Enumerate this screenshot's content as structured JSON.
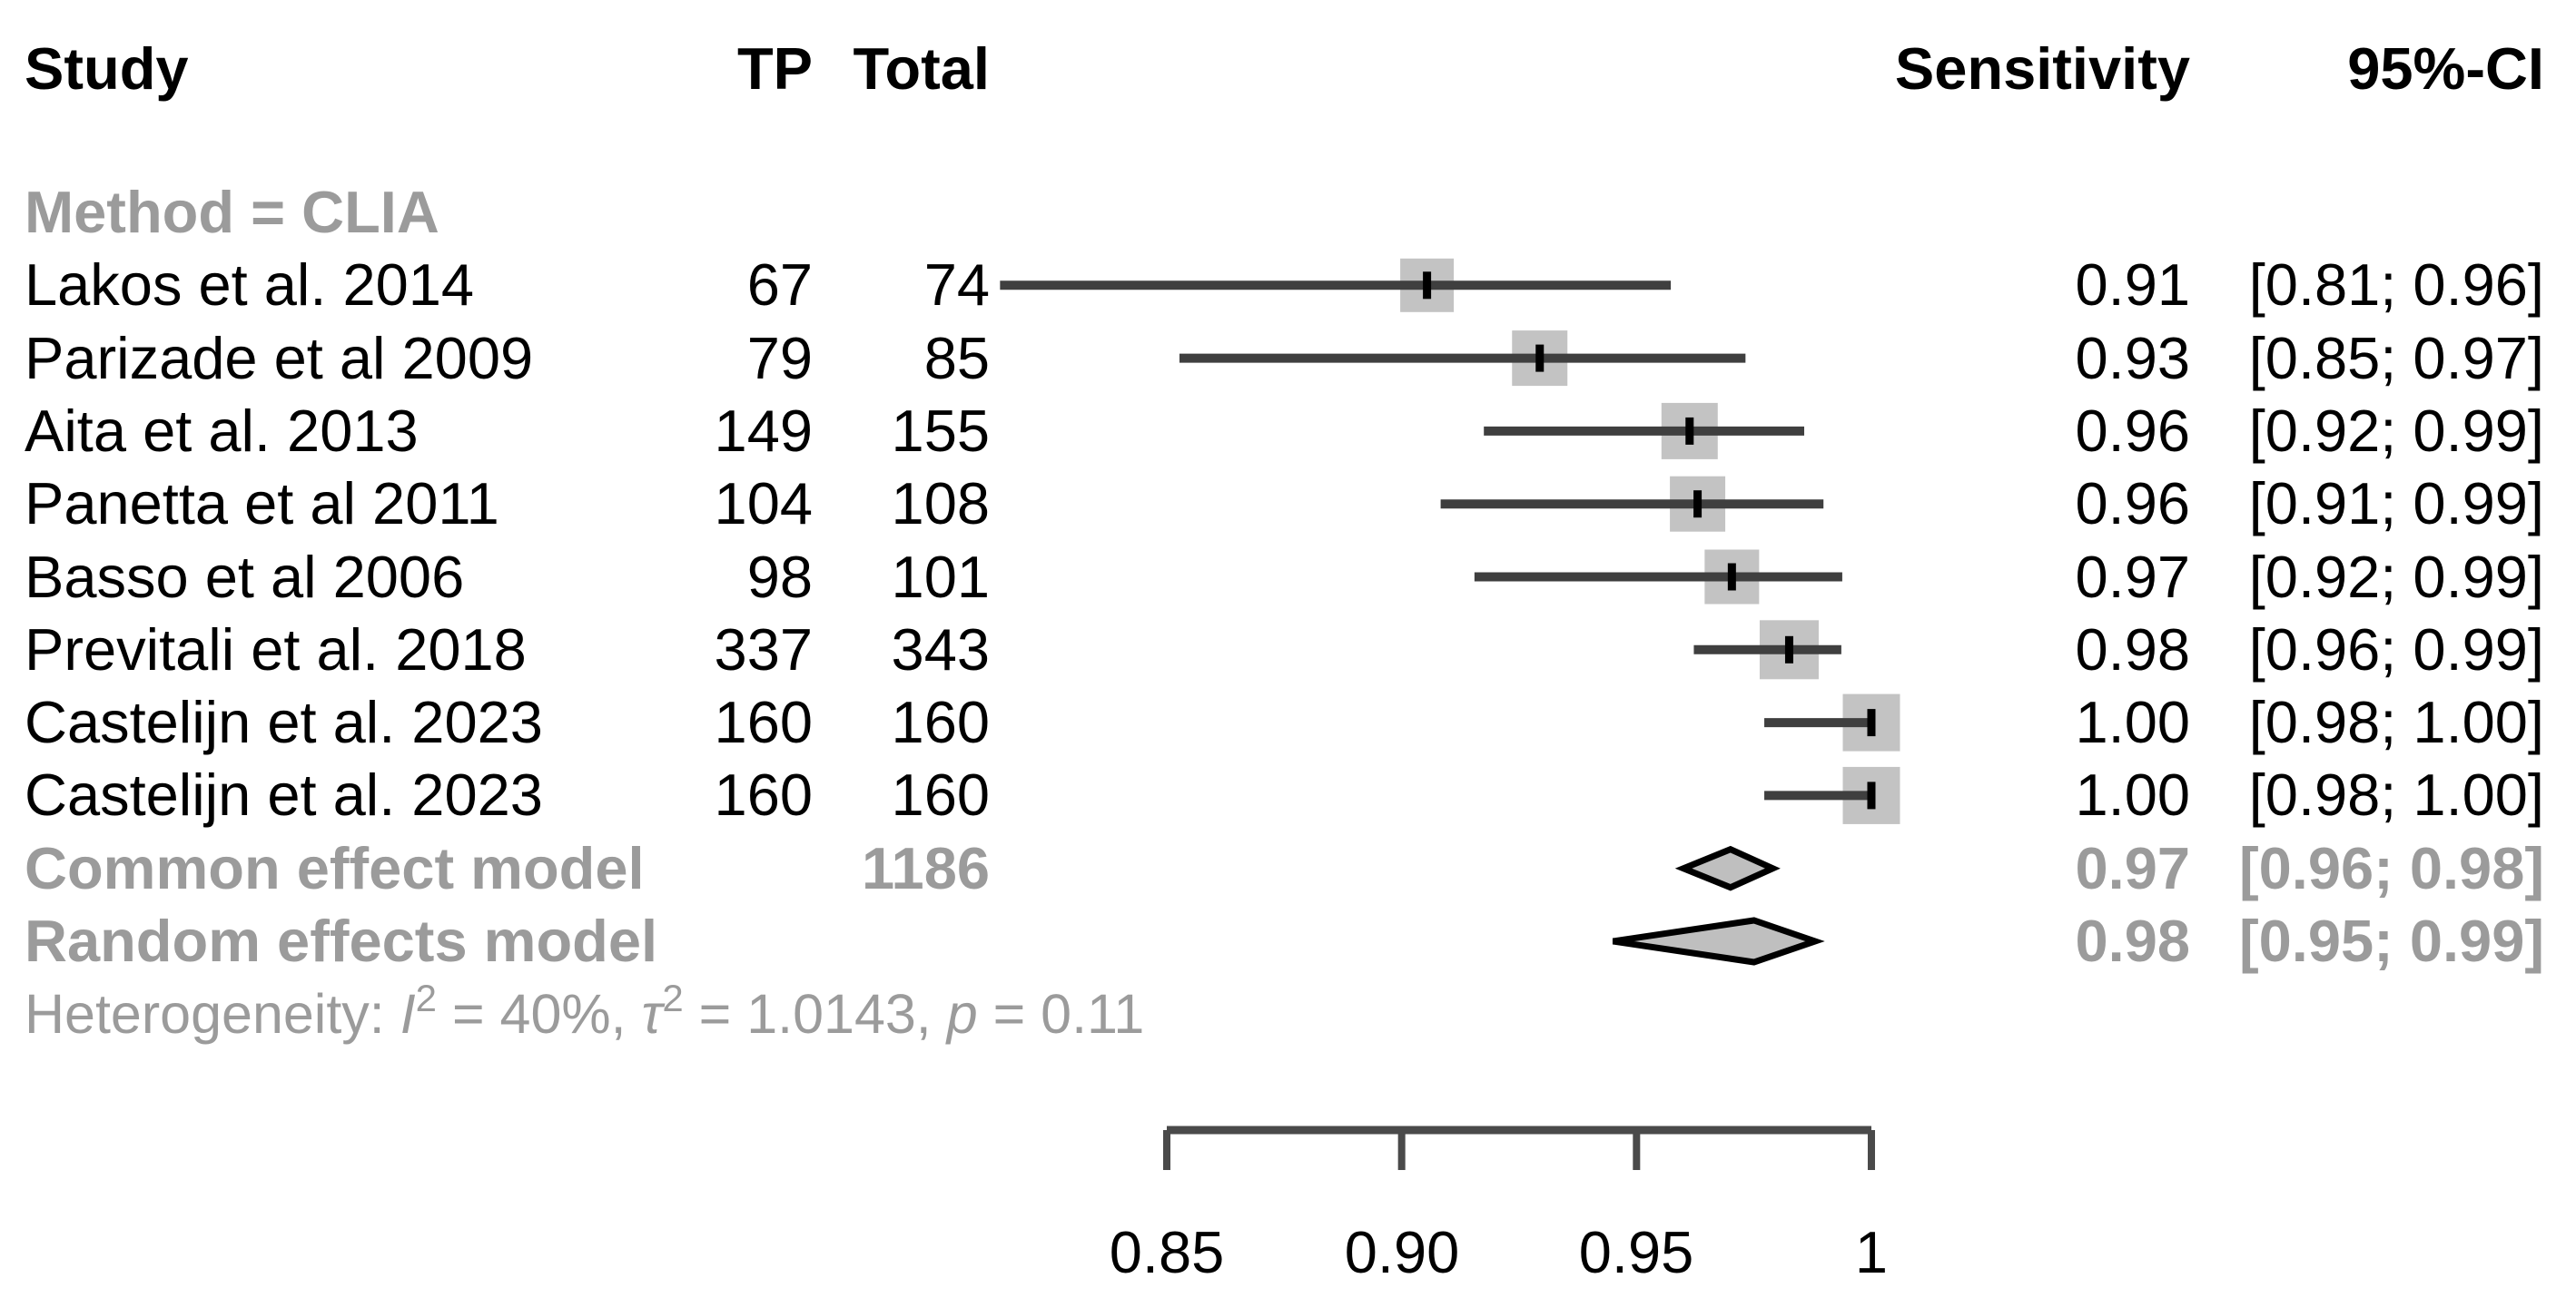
{
  "header": {
    "study": "Study",
    "tp": "TP",
    "total": "Total",
    "sensitivity": "Sensitivity",
    "ci": "95%-CI"
  },
  "colors": {
    "background": "#ffffff",
    "black_text": "#000000",
    "gray_text": "#9b9b9b",
    "square": "#c3c3c3",
    "ci_line": "#3f3f3f",
    "point_tick": "#000000",
    "diamond_fill": "#bfbfbf",
    "diamond_stroke": "#000000",
    "axis": "#4a4a4a"
  },
  "chart_data": {
    "type": "forest",
    "title": "",
    "subgroup_label": "Method = CLIA",
    "effect_measure": "Sensitivity",
    "xlim": [
      0.85,
      1.0
    ],
    "axis": {
      "ticks": [
        {
          "v": 0.85,
          "label": "0.85"
        },
        {
          "v": 0.9,
          "label": "0.90"
        },
        {
          "v": 0.95,
          "label": "0.95"
        },
        {
          "v": 1.0,
          "label": "1"
        }
      ]
    },
    "rows": [
      {
        "type": "subgroup",
        "name": "Method = CLIA"
      },
      {
        "type": "study",
        "name": "Lakos et al. 2014",
        "tp": "67",
        "total": "74",
        "sens": "0.91",
        "ci": "[0.81; 0.96]",
        "est": 0.9054,
        "lower": 0.8145,
        "upper": 0.9573,
        "square": 59
      },
      {
        "type": "study",
        "name": "Parizade et al 2009",
        "tp": "79",
        "total": "85",
        "sens": "0.93",
        "ci": "[0.85; 0.97]",
        "est": 0.9294,
        "lower": 0.8527,
        "upper": 0.9732,
        "square": 61
      },
      {
        "type": "study",
        "name": "Aita et al. 2013",
        "tp": "149",
        "total": "155",
        "sens": "0.96",
        "ci": "[0.92; 0.99]",
        "est": 0.9613,
        "lower": 0.9175,
        "upper": 0.9857,
        "square": 62
      },
      {
        "type": "study",
        "name": "Panetta et al 2011",
        "tp": "104",
        "total": "108",
        "sens": "0.96",
        "ci": "[0.91; 0.99]",
        "est": 0.963,
        "lower": 0.9083,
        "upper": 0.9898,
        "square": 61
      },
      {
        "type": "study",
        "name": "Basso et al 2006",
        "tp": "98",
        "total": "101",
        "sens": "0.97",
        "ci": "[0.92; 0.99]",
        "est": 0.9703,
        "lower": 0.9155,
        "upper": 0.9938,
        "square": 60
      },
      {
        "type": "study",
        "name": "Previtali et al. 2018",
        "tp": "337",
        "total": "343",
        "sens": "0.98",
        "ci": "[0.96; 0.99]",
        "est": 0.9825,
        "lower": 0.9622,
        "upper": 0.9936,
        "square": 65
      },
      {
        "type": "study",
        "name": "Castelijn et al. 2023",
        "tp": "160",
        "total": "160",
        "sens": "1.00",
        "ci": "[0.98; 1.00]",
        "est": 1.0,
        "lower": 0.9772,
        "upper": 1.0,
        "square": 63
      },
      {
        "type": "study",
        "name": "Castelijn et al. 2023",
        "tp": "160",
        "total": "160",
        "sens": "1.00",
        "ci": "[0.98; 1.00]",
        "est": 1.0,
        "lower": 0.9772,
        "upper": 1.0,
        "square": 63
      },
      {
        "type": "summary",
        "name": "Common effect model",
        "total": "1186",
        "sens": "0.97",
        "ci": "[0.96; 0.98]",
        "est": 0.97,
        "lower": 0.96,
        "upper": 0.979,
        "height": 42
      },
      {
        "type": "summary",
        "name": "Random effects model",
        "total": "",
        "sens": "0.98",
        "ci": "[0.95; 0.99]",
        "est": 0.975,
        "lower": 0.945,
        "upper": 0.988,
        "height": 46
      },
      {
        "type": "note",
        "segments": [
          {
            "t": "Heterogeneity: "
          },
          {
            "t": "I",
            "style": "it"
          },
          {
            "t": "2",
            "style": "sup"
          },
          {
            "t": " = 40%, "
          },
          {
            "t": "τ",
            "style": "it"
          },
          {
            "t": "2",
            "style": "sup"
          },
          {
            "t": " = 1.0143, "
          },
          {
            "t": "p",
            "style": "it"
          },
          {
            "t": " = 0.11"
          }
        ]
      }
    ]
  }
}
